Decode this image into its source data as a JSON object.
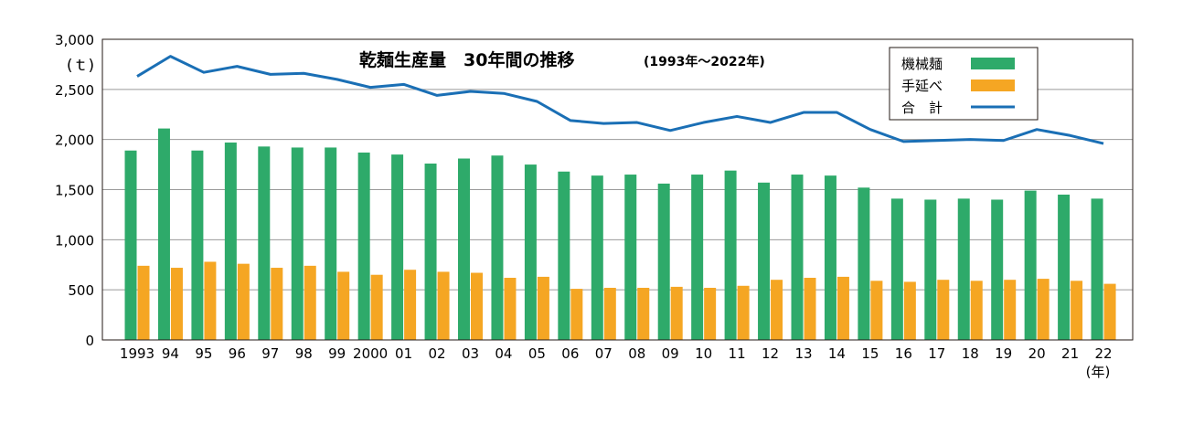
{
  "chart_data": {
    "type": "bar",
    "title": "乾麺生産量　30年間の推移",
    "subtitle": "(1993年～2022年)",
    "ylabel": "(ｔ)",
    "xlabel": "(年)",
    "ylim": [
      0,
      3000
    ],
    "yticks": [
      0,
      500,
      1000,
      1500,
      2000,
      2500,
      3000
    ],
    "ytick_labels": [
      "0",
      "500",
      "1,000",
      "1,500",
      "2,000",
      "2,500",
      "3,000"
    ],
    "grid": true,
    "legend_position": "top-right",
    "categories": [
      "1993",
      "94",
      "95",
      "96",
      "97",
      "98",
      "99",
      "2000",
      "01",
      "02",
      "03",
      "04",
      "05",
      "06",
      "07",
      "08",
      "09",
      "10",
      "11",
      "12",
      "13",
      "14",
      "15",
      "16",
      "17",
      "18",
      "19",
      "20",
      "21",
      "22"
    ],
    "series": [
      {
        "name": "機械麺",
        "type": "bar",
        "color": "#2eaa6a",
        "values": [
          1890,
          2110,
          1890,
          1970,
          1930,
          1920,
          1920,
          1870,
          1850,
          1760,
          1810,
          1840,
          1750,
          1680,
          1640,
          1650,
          1560,
          1650,
          1690,
          1570,
          1650,
          1640,
          1520,
          1410,
          1400,
          1410,
          1400,
          1490,
          1450,
          1410
        ]
      },
      {
        "name": "手延べ",
        "type": "bar",
        "color": "#f5a623",
        "values": [
          740,
          720,
          780,
          760,
          720,
          740,
          680,
          650,
          700,
          680,
          670,
          620,
          630,
          510,
          520,
          520,
          530,
          520,
          540,
          600,
          620,
          630,
          590,
          580,
          600,
          590,
          600,
          610,
          590,
          560
        ]
      },
      {
        "name": "合　計",
        "type": "line",
        "color": "#1a6fb5",
        "values": [
          2630,
          2830,
          2670,
          2730,
          2650,
          2660,
          2600,
          2520,
          2550,
          2440,
          2480,
          2460,
          2380,
          2190,
          2160,
          2170,
          2090,
          2170,
          2230,
          2170,
          2270,
          2270,
          2100,
          1980,
          1990,
          2000,
          1990,
          2100,
          2040,
          1960
        ]
      }
    ]
  }
}
